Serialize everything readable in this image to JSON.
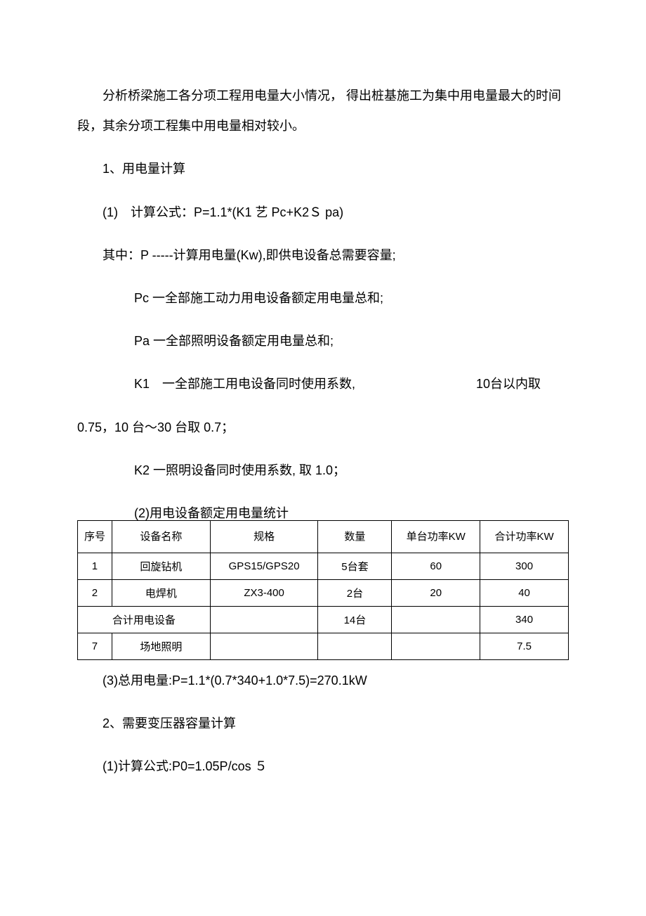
{
  "paragraphs": {
    "p1": "分析桥梁施工各分项工程用电量大小情况， 得出桩基施工为集中用电量最大的时间段，其余分项工程集中用电量相对较小。",
    "p2": "1、用电量计算",
    "p3": "(1)　计算公式：P=1.1*(K1 艺 Pc+K2Ｓ pa)",
    "p4": "其中：P -----计算用电量(Kw),即供电设备总需要容量;",
    "p5": "Pc 一全部施工动力用电设备额定用电量总和;",
    "p6": "Pa 一全部照明设备额定用电量总和;",
    "p7_left": "K1　一全部施工用电设备同时使用系数,",
    "p7_right": "10台以内取",
    "p8": "0.75，10 台〜30 台取 0.7；",
    "p9": "K2 一照明设备同时使用系数,  取 1.0；",
    "p10": "(2)用电设备额定用电量统计",
    "p11": "(3)总用电量:P=1.1*(0.7*340+1.0*7.5)=270.1kW",
    "p12": "2、需要变压器容量计算",
    "p13": "(1)计算公式:P0=1.05P/cos ５"
  },
  "table": {
    "headers": {
      "seq": "序号",
      "name": "设备名称",
      "spec": "规格",
      "qty": "数量",
      "unit": "单台功率KW",
      "total": "合计功率KW"
    },
    "rows": [
      {
        "seq": "1",
        "name": "回旋钻机",
        "spec": "GPS15/GPS20",
        "qty": "5台套",
        "unit": "60",
        "total": "300"
      },
      {
        "seq": "2",
        "name": "电焊机",
        "spec": "ZX3-400",
        "qty": "2台",
        "unit": "20",
        "total": "40"
      },
      {
        "merged_label": "合计用电设备",
        "spec": "",
        "qty": "14台",
        "unit": "",
        "total": "340"
      },
      {
        "seq": "7",
        "name": "场地照明",
        "spec": "",
        "qty": "",
        "unit": "",
        "total": "7.5"
      }
    ]
  },
  "style": {
    "background_color": "#ffffff",
    "text_color": "#000000",
    "body_fontsize": 18,
    "table_fontsize": 15,
    "border_color": "#000000"
  }
}
